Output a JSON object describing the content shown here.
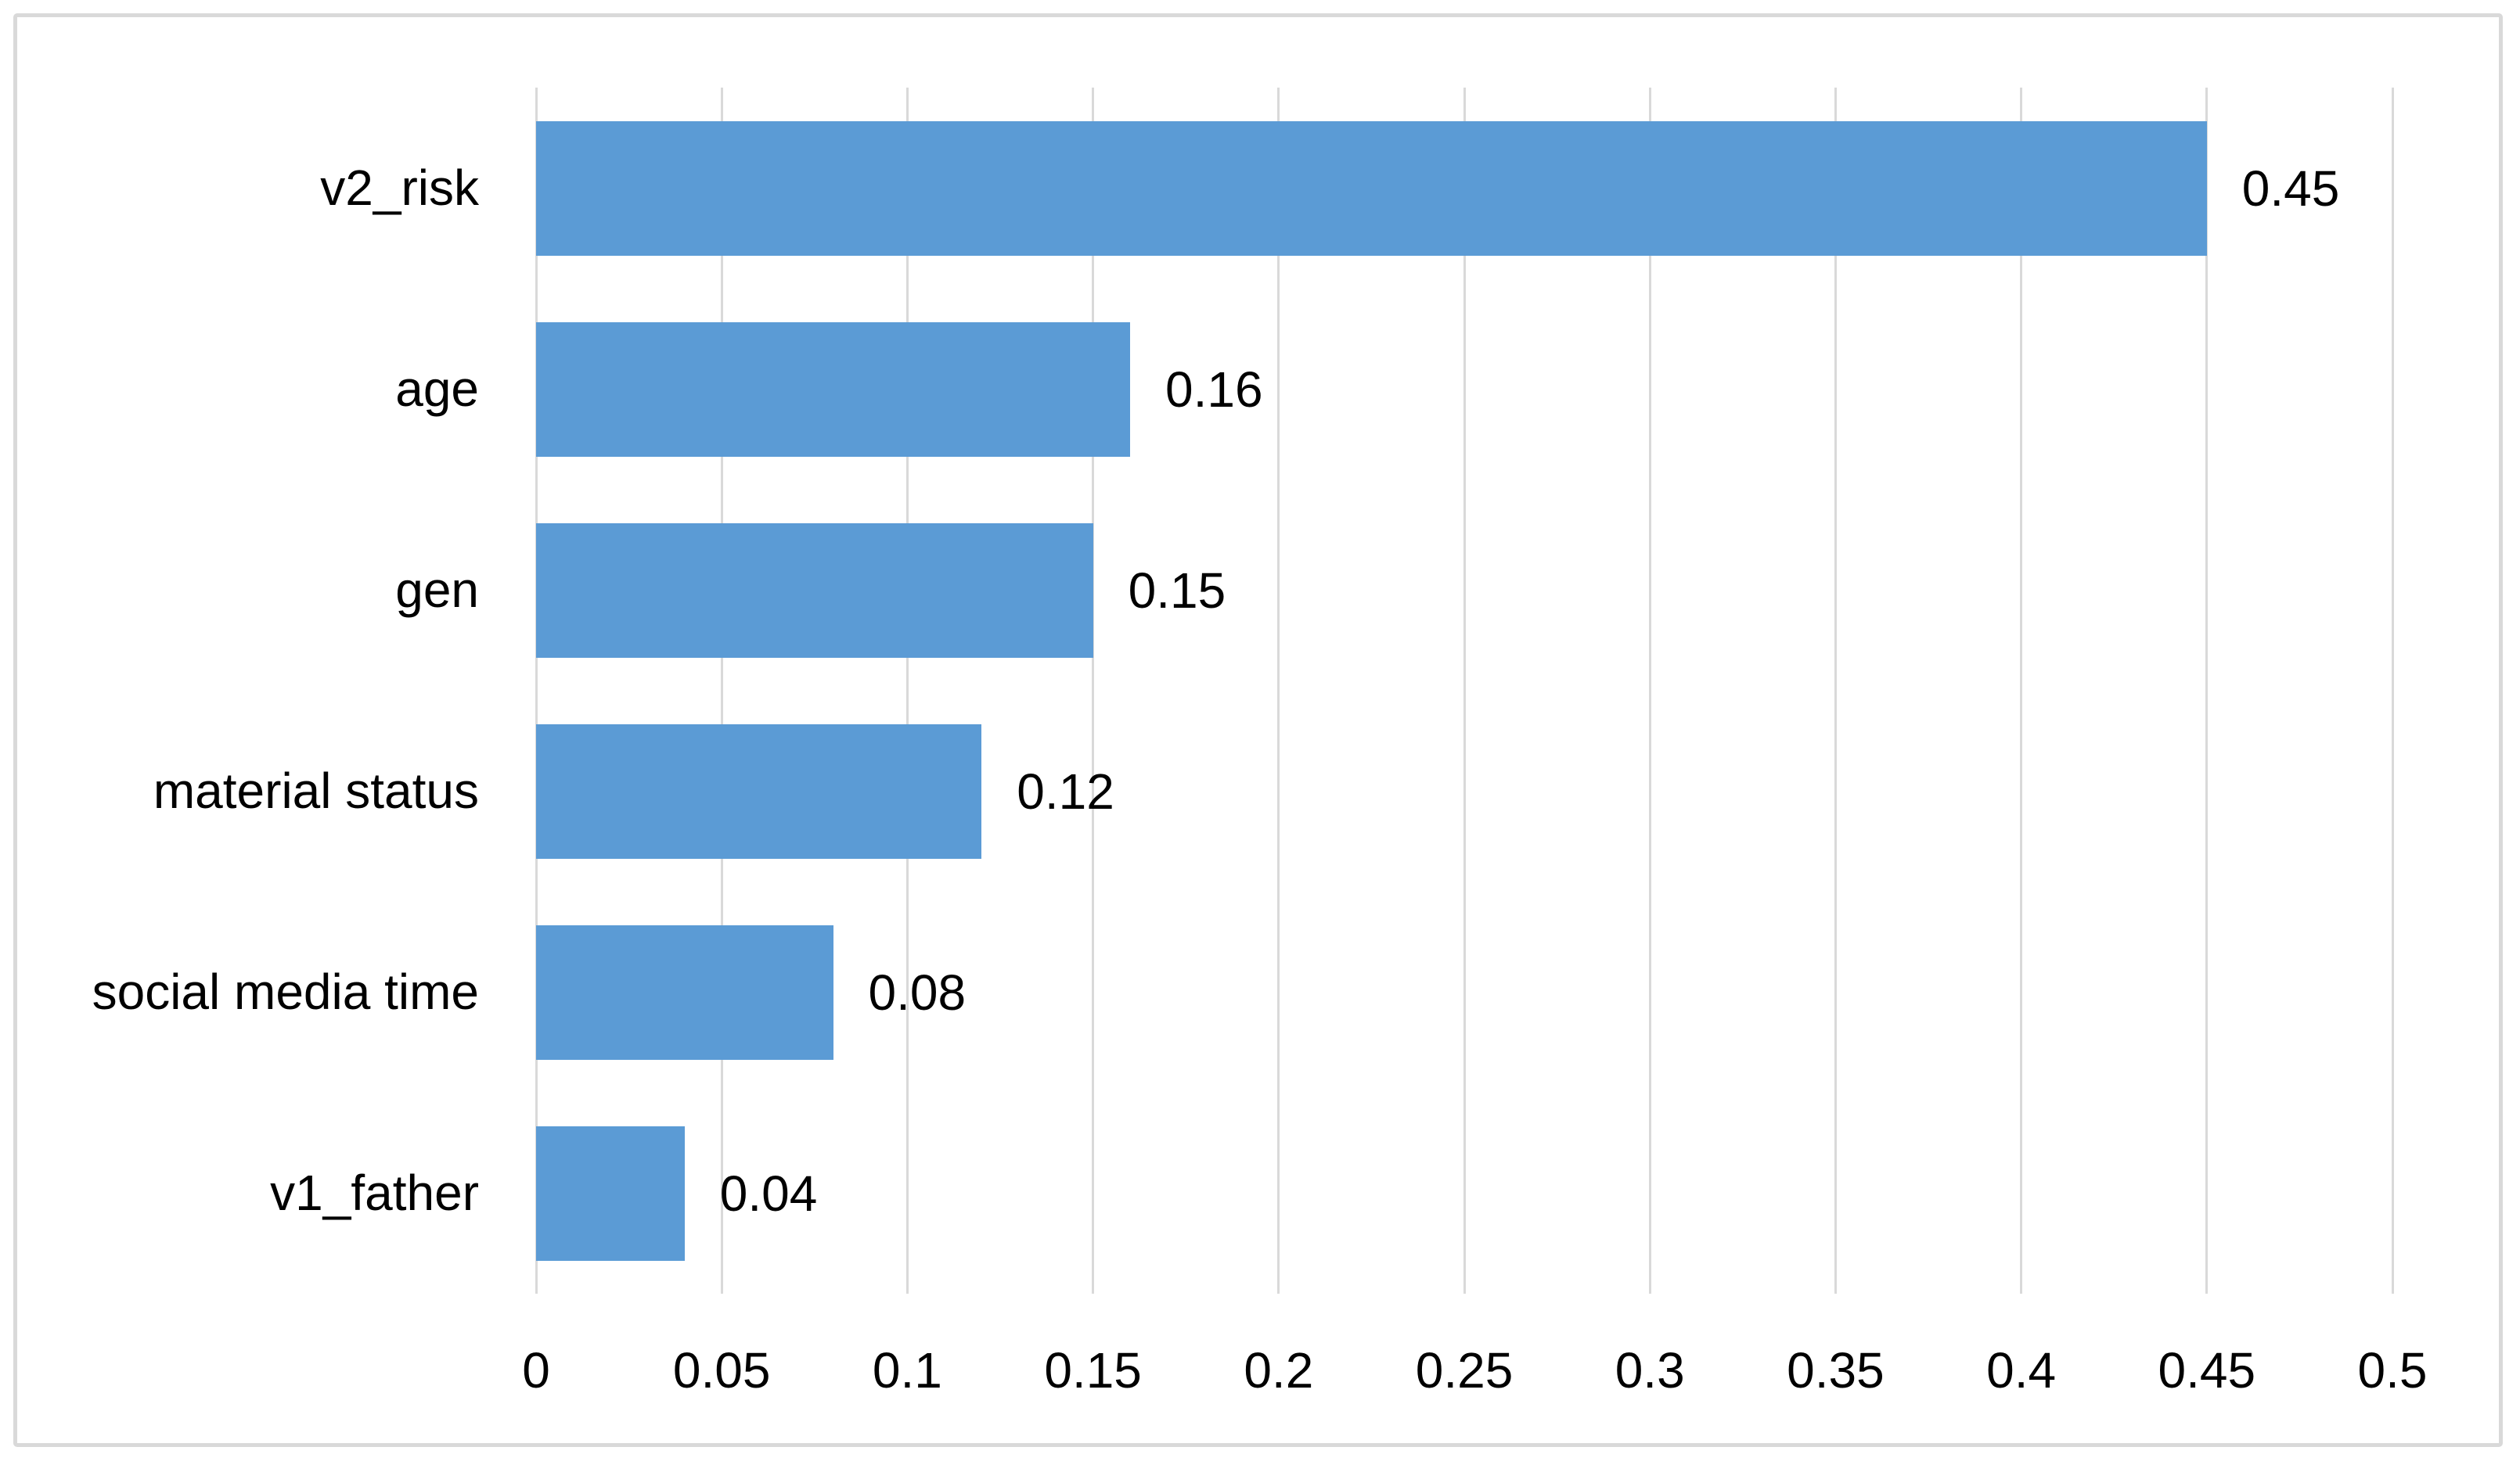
{
  "chart_data": {
    "type": "bar",
    "orientation": "horizontal",
    "title": "",
    "xlabel": "",
    "ylabel": "",
    "categories": [
      "v2_risk",
      "age",
      "gen",
      "material status",
      "social media time",
      "v1_father"
    ],
    "values": [
      0.45,
      0.16,
      0.15,
      0.12,
      0.08,
      0.04
    ],
    "value_labels": [
      "0.45",
      "0.16",
      "0.15",
      "0.12",
      "0.08",
      "0.04"
    ],
    "xlim": [
      0,
      0.5
    ],
    "x_tick_values": [
      0,
      0.05,
      0.1,
      0.15,
      0.2,
      0.25,
      0.3,
      0.35,
      0.4,
      0.45,
      0.5
    ],
    "x_tick_labels": [
      "0",
      "0.05",
      "0.1",
      "0.15",
      "0.2",
      "0.25",
      "0.3",
      "0.35",
      "0.4",
      "0.45",
      "0.5"
    ],
    "grid": "vertical-gridlines-on",
    "legend": "none",
    "data_labels": "outside-end",
    "colors": {
      "bar": "#5b9bd5",
      "gridline": "#d9d9d9",
      "frame_border": "#d9d9d9",
      "text": "#000000",
      "background": "#ffffff"
    }
  }
}
